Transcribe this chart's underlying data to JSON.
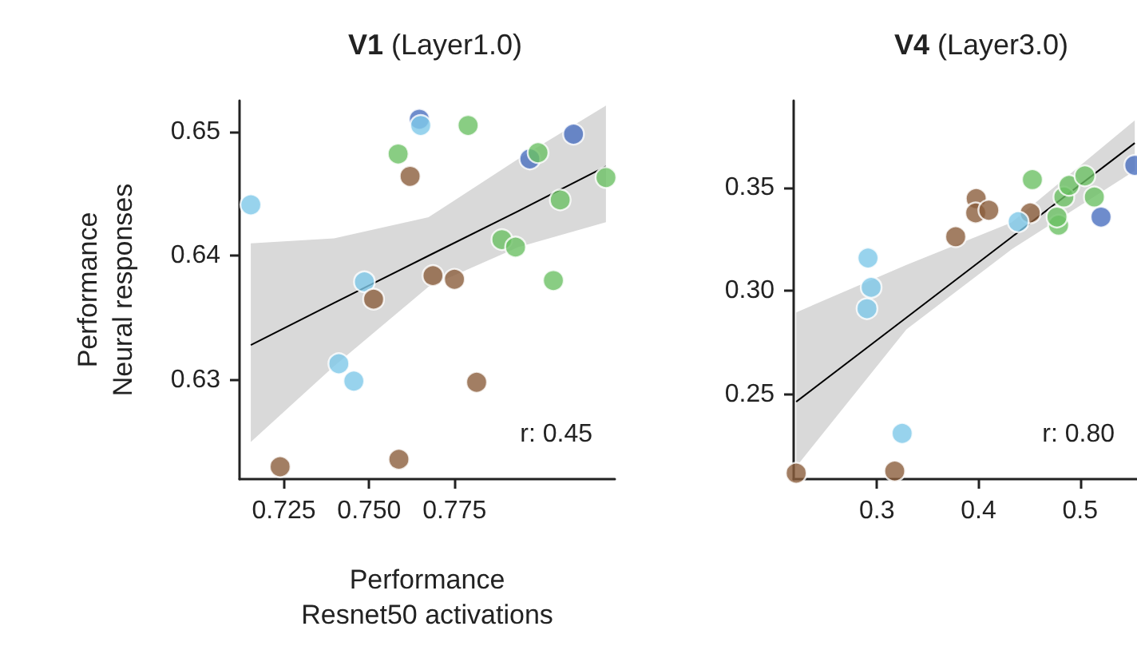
{
  "chart_data": [
    {
      "type": "scatter",
      "title": "V1 (Layer1.0)",
      "xlabel": "Performance\nResnet50 activations",
      "ylabel": "Performance\nNeural responses",
      "xlim": [
        0.712,
        0.822
      ],
      "ylim": [
        0.622,
        0.6525
      ],
      "xticks": [
        0.725,
        {
          "value": 0.75,
          "label": "0.750"
        },
        0.775
      ],
      "yticks": [
        0.63,
        0.64,
        0.65
      ],
      "grid": false,
      "marker": "circle",
      "annotations": [
        "r: 0.45"
      ],
      "series": [
        {
          "color": "#4a6fbf",
          "x": [
            0.7647,
            0.7971,
            0.8099
          ],
          "values": [
            0.651,
            0.6478,
            0.6498
          ]
        },
        {
          "color": "#7ec8e8",
          "x": [
            0.7153,
            0.7651,
            0.7486,
            0.7411,
            0.7455
          ],
          "values": [
            0.6441,
            0.6505,
            0.6379,
            0.6313,
            0.6299
          ]
        },
        {
          "color": "#8b5e3c",
          "x": [
            0.762,
            0.7687,
            0.775,
            0.7513,
            0.7815,
            0.7239,
            0.7587
          ],
          "values": [
            0.6464,
            0.6384,
            0.6381,
            0.6365,
            0.6298,
            0.623,
            0.6236
          ]
        },
        {
          "color": "#6cc064",
          "x": [
            0.7585,
            0.779,
            0.7995,
            0.8194,
            0.806,
            0.7889,
            0.7929,
            0.804
          ],
          "values": [
            0.6482,
            0.6505,
            0.6483,
            0.6463,
            0.6445,
            0.6413,
            0.6407,
            0.638
          ]
        },
        {
          "type": "line",
          "marker": "none",
          "color": "#000000",
          "x": [
            0.7153,
            0.7397,
            0.7674,
            0.7937,
            0.8194
          ],
          "values": [
            0.6328,
            0.6362,
            0.64,
            0.6436,
            0.6472
          ],
          "lower": [
            0.625,
            0.6311,
            0.6375,
            0.6407,
            0.6427
          ],
          "upper": [
            0.641,
            0.6414,
            0.6431,
            0.6478,
            0.6521
          ]
        }
      ]
    },
    {
      "type": "scatter",
      "title": "V4 (Layer3.0)",
      "xlim": [
        0.218,
        0.556
      ],
      "ylim": [
        0.209,
        0.392
      ],
      "xticks": [
        0.3,
        0.4,
        0.5
      ],
      "yticks": [
        0.25,
        {
          "value": 0.3,
          "label": "0.30"
        },
        0.35
      ],
      "grid": false,
      "marker": "circle",
      "annotations": [
        "r: 0.80"
      ],
      "series": [
        {
          "color": "#8b5e3c",
          "x": [
            0.2205,
            0.3175,
            0.3775,
            0.3977,
            0.3972,
            0.4101,
            0.4509
          ],
          "values": [
            0.2119,
            0.2129,
            0.3262,
            0.3446,
            0.3377,
            0.339,
            0.3377
          ]
        },
        {
          "color": "#7ec8e8",
          "x": [
            0.3248,
            0.2902,
            0.2943,
            0.2912,
            0.4391
          ],
          "values": [
            0.2311,
            0.2914,
            0.3017,
            0.3159,
            0.3334
          ]
        },
        {
          "color": "#6cc064",
          "x": [
            0.453,
            0.4788,
            0.4772,
            0.484,
            0.4891,
            0.5047,
            0.514
          ],
          "values": [
            0.3538,
            0.3318,
            0.3357,
            0.3454,
            0.351,
            0.3556,
            0.3454
          ]
        },
        {
          "color": "#4a6fbf",
          "x": [
            0.5206,
            0.5538
          ],
          "values": [
            0.3357,
            0.3607
          ]
        },
        {
          "type": "line",
          "marker": "none",
          "color": "#000000",
          "x": [
            0.2205,
            0.329,
            0.4323,
            0.5538
          ],
          "values": [
            0.2464,
            0.2871,
            0.3259,
            0.3715
          ],
          "lower": [
            0.215,
            0.2814,
            0.32,
            0.3581
          ],
          "upper": [
            0.2896,
            0.3126,
            0.333,
            0.3824
          ]
        }
      ]
    }
  ]
}
